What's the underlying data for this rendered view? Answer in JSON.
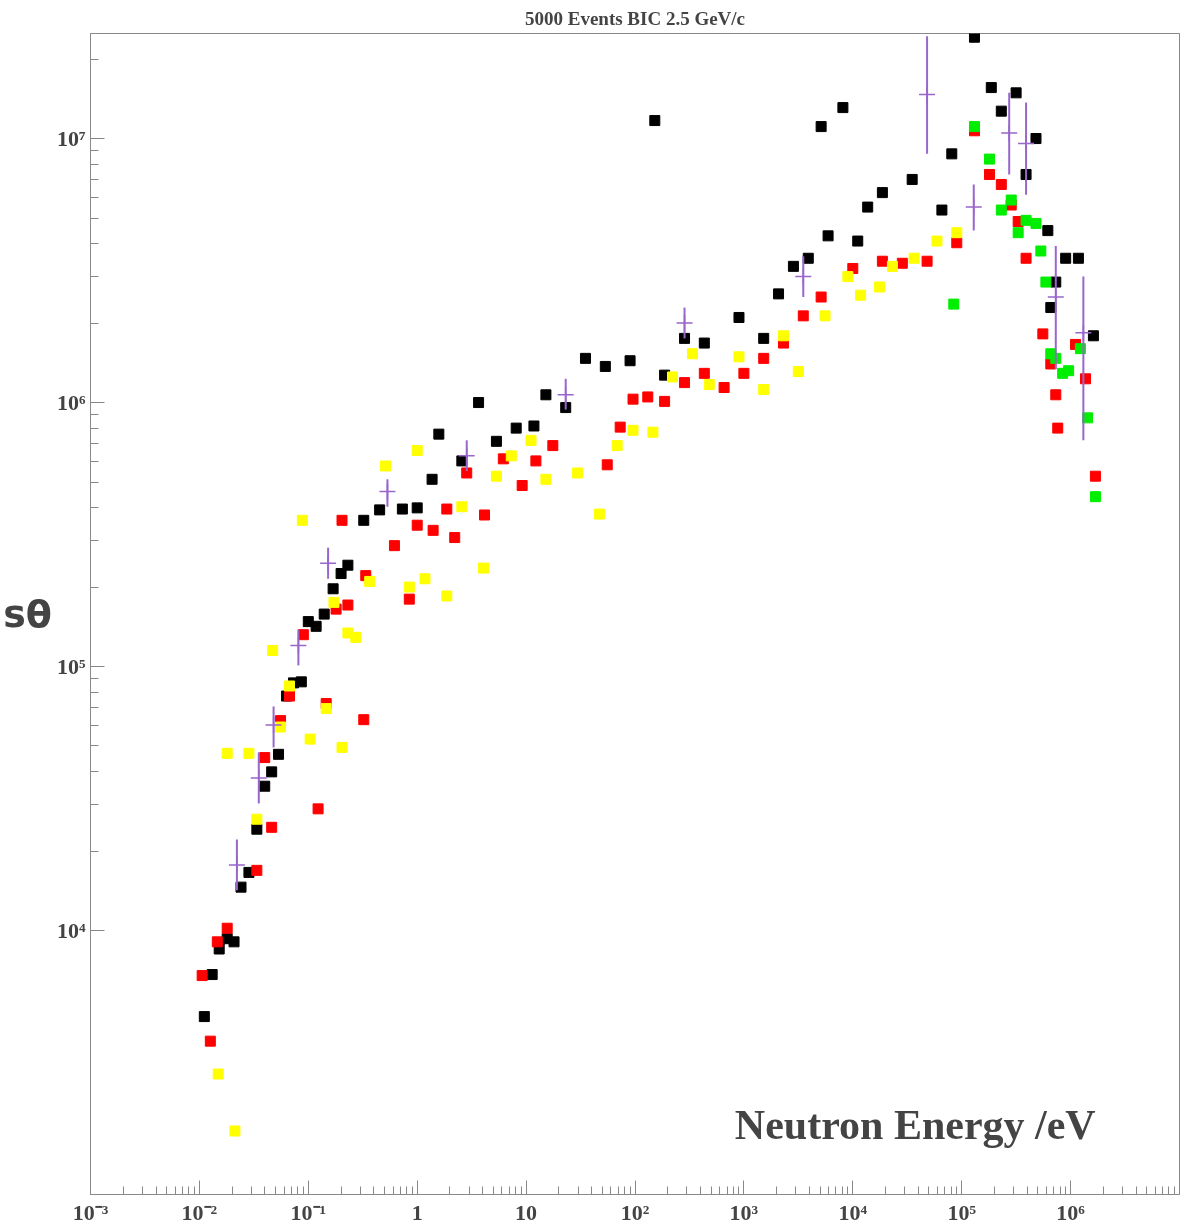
{
  "chart_data": {
    "type": "scatter",
    "title": "5000 Events BIC 2.5 GeV/c",
    "xlabel": "Neutron Energy /eV",
    "ylabel": "sθ",
    "log": "xy",
    "grid": false,
    "marker": "square",
    "xlim": [
      0.001,
      10000000
    ],
    "ylim": [
      1000,
      25000000
    ],
    "xticks": [
      {
        "value": 0.001,
        "label": "10⁻³"
      },
      {
        "value": 0.01,
        "label": "10⁻²"
      },
      {
        "value": 0.1,
        "label": "10⁻¹"
      },
      1,
      10,
      {
        "value": 100,
        "label": "10²"
      },
      {
        "value": 1000,
        "label": "10³"
      },
      {
        "value": 10000,
        "label": "10⁴"
      },
      {
        "value": 100000,
        "label": "10⁵"
      },
      {
        "value": 1000000,
        "label": "10⁶"
      }
    ],
    "yticks": [
      {
        "value": 10000,
        "label": "10⁴"
      },
      {
        "value": 100000,
        "label": "10⁵"
      },
      {
        "value": 1000000,
        "label": "10⁶"
      },
      {
        "value": 10000000,
        "label": "10⁷"
      }
    ],
    "series": [
      {
        "color": "#000000",
        "x": [
          0.0111,
          0.0131,
          0.0152,
          0.018,
          0.0208,
          0.0241,
          0.0285,
          0.0337,
          0.0398,
          0.0461,
          0.0533,
          0.0631,
          0.0731,
          0.0863,
          0.1,
          0.118,
          0.14,
          0.169,
          0.2,
          0.231,
          0.323,
          0.452,
          0.731,
          1.0,
          1.37,
          1.58,
          2.57,
          3.66,
          5.34,
          8.11,
          11.8,
          15.2,
          23.1,
          35.1,
          53.4,
          90.1,
          152,
          187,
          285,
          433,
          901,
          1520,
          2080,
          2850,
          3900,
          5120,
          5930,
          8110,
          11100,
          13700,
          18700,
          35100,
          65800,
          81100,
          131000,
          187000,
          231000,
          316000,
          390000,
          481000,
          618000,
          658000,
          731000,
          901000,
          1180000,
          1620000
        ],
        "values": [
          4720,
          6810,
          8510,
          9310,
          9060,
          14600,
          16600,
          24200,
          35200,
          39900,
          46500,
          77300,
          86700,
          87500,
          148000,
          142000,
          158000,
          197000,
          225000,
          242000,
          358000,
          392000,
          395000,
          399000,
          512000,
          759000,
          601000,
          1000000,
          713000,
          800000,
          815000,
          1070000,
          957000,
          1470000,
          1370000,
          1440000,
          11700000,
          1270000,
          1750000,
          1680000,
          2100000,
          1750000,
          2580000,
          3280000,
          3520000,
          11100000,
          4280000,
          13100000,
          4090000,
          5500000,
          6240000,
          7000000,
          5360000,
          8750000,
          24200000,
          15600000,
          12700000,
          14900000,
          7310000,
          10000000,
          4480000,
          2290000,
          2860000,
          3520000,
          3520000,
          1790000
        ]
      },
      {
        "color": "#ff0000",
        "x": [
          0.0106,
          0.0126,
          0.0146,
          0.018,
          0.0337,
          0.0398,
          0.0461,
          0.0556,
          0.0672,
          0.0901,
          0.123,
          0.146,
          0.18,
          0.204,
          0.231,
          0.337,
          0.323,
          0.618,
          0.846,
          1.0,
          1.4,
          1.87,
          2.21,
          2.85,
          4.15,
          6.18,
          9.2,
          12.3,
          17.6,
          55.6,
          73.1,
          95.9,
          131,
          187,
          285,
          433,
          658,
          1000,
          1520,
          2310,
          3510,
          5120,
          10000,
          18700,
          28500,
          48100,
          90100,
          131000,
          180000,
          231000,
          285000,
          330000,
          390000,
          556000,
          658000,
          731000,
          762000,
          1110000,
          1370000,
          1690000
        ],
        "values": [
          6750,
          3810,
          9060,
          10200,
          16900,
          45200,
          24600,
          62400,
          77300,
          132000,
          28900,
          72400,
          165000,
          358000,
          171000,
          221000,
          62900,
          287000,
          180000,
          343000,
          328000,
          395000,
          308000,
          541000,
          375000,
          612000,
          485000,
          601000,
          687000,
          581000,
          807000,
          1030000,
          1050000,
          1010000,
          1190000,
          1290000,
          1140000,
          1290000,
          1470000,
          1680000,
          2130000,
          2510000,
          3220000,
          3430000,
          3370000,
          3430000,
          4030000,
          10700000,
          7310000,
          6700000,
          5600000,
          4850000,
          3520000,
          1820000,
          1400000,
          1070000,
          800000,
          1660000,
          1230000,
          526000
        ]
      },
      {
        "color": "#ffff00",
        "x": [
          0.0149,
          0.018,
          0.0212,
          0.0285,
          0.0337,
          0.0471,
          0.0556,
          0.0672,
          0.0882,
          0.104,
          0.146,
          0.172,
          0.204,
          0.231,
          0.273,
          0.366,
          0.512,
          0.846,
          1.0,
          1.18,
          1.87,
          2.57,
          4.06,
          5.34,
          7.31,
          11.1,
          15.2,
          29.7,
          47.1,
          68.6,
          95.9,
          146,
          221,
          337,
          481,
          901,
          1520,
          2310,
          3160,
          5560,
          9010,
          11800,
          17600,
          23100,
          36600,
          59300,
          90100
        ],
        "values": [
          2860,
          46900,
          1740,
          46900,
          26400,
          115000,
          59000,
          84400,
          358000,
          53100,
          69300,
          175000,
          49400,
          134000,
          129000,
          210000,
          575000,
          200000,
          658000,
          215000,
          185000,
          403000,
          236000,
          526000,
          628000,
          719000,
          512000,
          541000,
          378000,
          687000,
          785000,
          772000,
          1250000,
          1530000,
          1170000,
          1490000,
          1120000,
          1790000,
          1310000,
          2130000,
          3000000,
          2550000,
          2740000,
          3280000,
          3520000,
          4090000,
          4400000
        ]
      },
      {
        "color": "#00ee00",
        "x": [
          84600,
          131000,
          180000,
          231000,
          285000,
          330000,
          390000,
          481000,
          533000,
          593000,
          658000,
          731000,
          845000,
          959000,
          1230000,
          1430000,
          1690000
        ],
        "values": [
          2360000,
          11100000,
          8360000,
          5360000,
          5850000,
          4400000,
          4900000,
          4770000,
          3750000,
          2860000,
          1530000,
          1470000,
          1290000,
          1320000,
          1600000,
          875000,
          440000
        ]
      },
      {
        "color": "#9966cc",
        "marker": "cross",
        "x": [
          0.0221,
          0.0351,
          0.048,
          0.0811,
          0.152,
          0.533,
          2.85,
          23.1,
          285,
          3510,
          48100,
          129000,
          273000,
          390000,
          731000,
          1310000
        ],
        "values": [
          17700,
          37800,
          60100,
          120000,
          246000,
          460000,
          628000,
          1070000,
          2000000,
          3000000,
          14700000,
          5500000,
          10500000,
          9570000,
          2510000,
          1840000
        ],
        "errors": [
          [
            14200,
            22100
          ],
          [
            30300,
            47300
          ],
          [
            49400,
            70600
          ],
          [
            101000,
            138000
          ],
          [
            215000,
            282000
          ],
          [
            403000,
            512000
          ],
          [
            550000,
            719000
          ],
          [
            940000,
            1230000
          ],
          [
            1750000,
            2290000
          ],
          [
            2510000,
            3580000
          ],
          [
            8750000,
            24400000
          ],
          [
            4480000,
            6700000
          ],
          [
            7310000,
            14900000
          ],
          [
            6120000,
            13700000
          ],
          [
            1340000,
            3920000
          ],
          [
            719000,
            3000000
          ]
        ]
      }
    ]
  }
}
